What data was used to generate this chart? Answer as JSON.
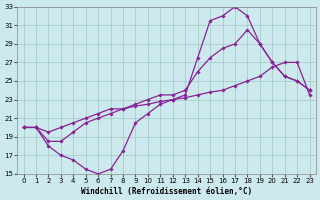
{
  "xlabel": "Windchill (Refroidissement éolien,°C)",
  "background_color": "#cce9ed",
  "grid_color": "#aacccc",
  "line_color": "#882299",
  "xlim": [
    0,
    23
  ],
  "ylim": [
    15,
    33
  ],
  "xticks": [
    0,
    1,
    2,
    3,
    4,
    5,
    6,
    7,
    8,
    9,
    10,
    11,
    12,
    13,
    14,
    15,
    16,
    17,
    18,
    19,
    20,
    21,
    22,
    23
  ],
  "yticks": [
    15,
    17,
    19,
    21,
    23,
    25,
    27,
    29,
    31,
    33
  ],
  "series1_x": [
    0,
    1,
    2,
    3,
    4,
    5,
    6,
    7,
    8,
    9,
    10,
    11,
    12,
    13,
    14,
    15,
    16,
    17,
    18,
    19,
    20,
    21,
    22,
    23
  ],
  "series1_y": [
    20.0,
    20.0,
    18.0,
    17.0,
    16.5,
    15.5,
    15.0,
    15.5,
    17.5,
    20.5,
    21.5,
    22.5,
    23.0,
    23.5,
    27.5,
    31.5,
    32.0,
    33.0,
    32.0,
    29.0,
    27.0,
    25.5,
    25.0,
    24.0
  ],
  "series2_x": [
    0,
    1,
    2,
    3,
    4,
    5,
    6,
    7,
    8,
    9,
    10,
    11,
    12,
    13,
    14,
    15,
    16,
    17,
    18,
    19,
    20,
    21,
    22,
    23
  ],
  "series2_y": [
    20.0,
    20.0,
    18.5,
    18.5,
    19.5,
    20.5,
    21.0,
    21.5,
    22.0,
    22.5,
    23.0,
    23.5,
    23.5,
    24.0,
    26.0,
    27.5,
    28.5,
    29.0,
    30.5,
    29.0,
    27.0,
    25.5,
    25.0,
    24.0
  ],
  "series3_x": [
    0,
    1,
    2,
    3,
    4,
    5,
    6,
    7,
    8,
    9,
    10,
    11,
    12,
    13,
    14,
    15,
    16,
    17,
    18,
    19,
    20,
    21,
    22,
    23
  ],
  "series3_y": [
    20.0,
    20.0,
    19.5,
    20.0,
    20.5,
    21.0,
    21.5,
    22.0,
    22.0,
    22.3,
    22.5,
    22.8,
    23.0,
    23.2,
    23.5,
    23.8,
    24.0,
    24.5,
    25.0,
    25.5,
    26.5,
    27.0,
    27.0,
    23.5
  ],
  "tick_fontsize": 5.0,
  "label_fontsize": 5.5
}
